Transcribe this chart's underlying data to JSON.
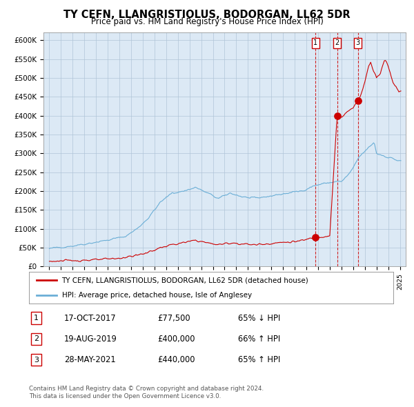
{
  "title": "TY CEFN, LLANGRISTIOLUS, BODORGAN, LL62 5DR",
  "subtitle": "Price paid vs. HM Land Registry's House Price Index (HPI)",
  "background_color": "#dce9f5",
  "ylim": [
    0,
    620000
  ],
  "yticks": [
    0,
    50000,
    100000,
    150000,
    200000,
    250000,
    300000,
    350000,
    400000,
    450000,
    500000,
    550000,
    600000
  ],
  "ytick_labels": [
    "£0",
    "£50K",
    "£100K",
    "£150K",
    "£200K",
    "£250K",
    "£300K",
    "£350K",
    "£400K",
    "£450K",
    "£500K",
    "£550K",
    "£600K"
  ],
  "legend_line1": "TY CEFN, LLANGRISTIOLUS, BODORGAN, LL62 5DR (detached house)",
  "legend_line2": "HPI: Average price, detached house, Isle of Anglesey",
  "sale1_date": "17-OCT-2017",
  "sale1_price": 77500,
  "sale1_pct": "65% ↓ HPI",
  "sale2_date": "19-AUG-2019",
  "sale2_price": 400000,
  "sale2_pct": "66% ↑ HPI",
  "sale3_date": "28-MAY-2021",
  "sale3_price": 440000,
  "sale3_pct": "65% ↑ HPI",
  "footer1": "Contains HM Land Registry data © Crown copyright and database right 2024.",
  "footer2": "This data is licensed under the Open Government Licence v3.0.",
  "hpi_color": "#6aaed6",
  "price_color": "#cc0000",
  "dashed_color": "#cc0000",
  "sale1_x": 2017.79,
  "sale2_x": 2019.63,
  "sale3_x": 2021.41,
  "xlim_left": 1994.5,
  "xlim_right": 2025.5
}
